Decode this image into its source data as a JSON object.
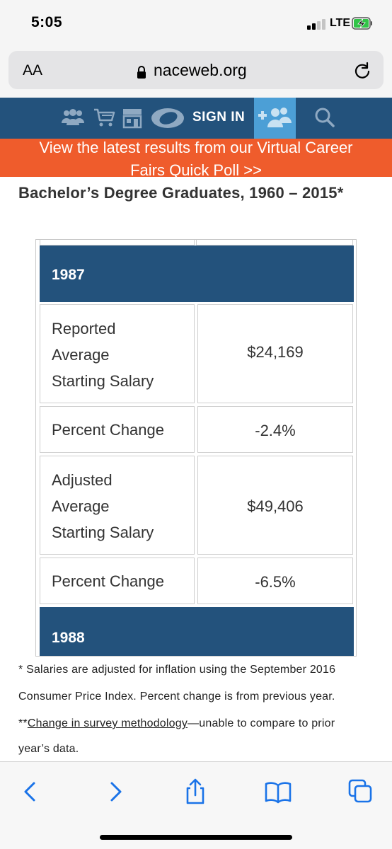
{
  "status_bar": {
    "time": "5:05",
    "network": "LTE",
    "icons": [
      "signal-icon",
      "battery-charging-icon"
    ]
  },
  "address_bar": {
    "text_size_label": "AA",
    "url": "naceweb.org",
    "icons": [
      "lock-icon",
      "reload-icon"
    ]
  },
  "site_nav": {
    "sign_in_label": "SIGN IN",
    "icons": [
      "members-icon",
      "cart-icon",
      "store-icon",
      "logo-icon",
      "join-icon",
      "search-icon"
    ],
    "colors": {
      "background": "#23527c",
      "join_highlight": "#4c9fd6"
    }
  },
  "banner": {
    "line1": "View the latest results from our Virtual Career",
    "line2": "Fairs Quick Poll >>",
    "color": "#ef5c2c"
  },
  "page": {
    "heading": "Bachelor’s Degree Graduates, 1960 – 2015*"
  },
  "table": {
    "header_color": "#23527c",
    "years": [
      {
        "year": "1987",
        "rows": [
          {
            "label_lines": [
              "Reported",
              "Average",
              "Starting Salary"
            ],
            "value": "$24,169"
          },
          {
            "label_lines": [
              "Percent Change"
            ],
            "value": "-2.4%"
          },
          {
            "label_lines": [
              "Adjusted",
              "Average",
              "Starting Salary"
            ],
            "value": "$49,406"
          },
          {
            "label_lines": [
              "Percent Change"
            ],
            "value": "-6.5%"
          }
        ]
      },
      {
        "year": "1988",
        "rows": []
      }
    ]
  },
  "footnotes": {
    "line1": "* Salaries are adjusted for inflation using the September 2016",
    "line2": "Consumer Price Index. Percent change is from previous year.",
    "line3_prefix": "**",
    "line3_link": "Change in survey methodology",
    "line3_suffix": "—unable to compare to prior",
    "line4": "year’s data."
  },
  "toolbar": {
    "icons": [
      "back-icon",
      "forward-icon",
      "share-icon",
      "bookmarks-icon",
      "tabs-icon"
    ],
    "tint": "#1a73e8"
  }
}
